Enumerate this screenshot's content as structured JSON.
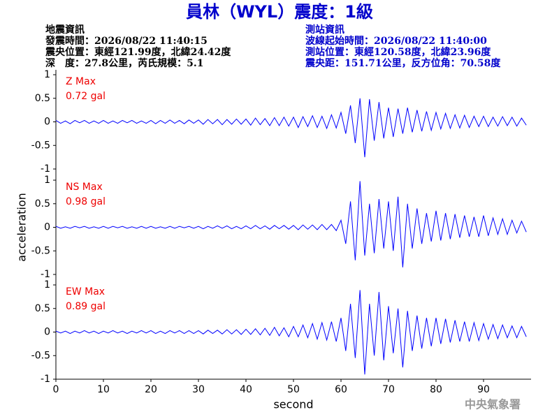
{
  "header": {
    "title": "員林（WYL）震度：1級",
    "left": [
      "地震資訊",
      "發震時間：2026/08/22 11:40:15",
      "震央位置：東經121.99度，北緯24.42度",
      "深　度：27.8公里，芮氏規模：5.1"
    ],
    "right": [
      "測站資訊",
      "波線起始時間：2026/08/22 11:40:00",
      "測站位置：東經120.58度，北緯23.96度",
      "震央距：151.71公里，反方位角：70.58度"
    ]
  },
  "footer": "中央氣象署",
  "chart_data": [
    {
      "type": "line",
      "annotation": "0.72 gal",
      "annotation_color": "#ee0000",
      "xlim": [
        0,
        100
      ],
      "ylim": [
        -1,
        1
      ],
      "yticks": [
        -1,
        -0.5,
        0,
        0.5,
        1
      ],
      "x": [
        0,
        1,
        2,
        3,
        4,
        5,
        6,
        7,
        8,
        9,
        10,
        11,
        12,
        13,
        14,
        15,
        16,
        17,
        18,
        19,
        20,
        21,
        22,
        23,
        24,
        25,
        26,
        27,
        28,
        29,
        30,
        31,
        32,
        33,
        34,
        35,
        36,
        37,
        38,
        39,
        40,
        41,
        42,
        43,
        44,
        45,
        46,
        47,
        48,
        49,
        50,
        51,
        52,
        53,
        54,
        55,
        56,
        57,
        58,
        59,
        60,
        61,
        62,
        63,
        64,
        65,
        66,
        67,
        68,
        69,
        70,
        71,
        72,
        73,
        74,
        75,
        76,
        77,
        78,
        79,
        80,
        81,
        82,
        83,
        84,
        85,
        86,
        87,
        88,
        89,
        90,
        91,
        92,
        93,
        94,
        95,
        96,
        97,
        98,
        99
      ],
      "series": [
        {
          "name": "Z Max",
          "color": "#0000ff",
          "values": [
            0.03,
            -0.03,
            0.02,
            -0.04,
            0.03,
            -0.02,
            0.03,
            -0.03,
            0.02,
            -0.03,
            0.03,
            -0.03,
            0.02,
            -0.03,
            0.03,
            -0.02,
            0.03,
            -0.03,
            0.02,
            -0.03,
            0.03,
            -0.04,
            0.03,
            -0.03,
            0.04,
            -0.03,
            0.03,
            -0.04,
            0.04,
            -0.03,
            0.04,
            -0.05,
            0.05,
            -0.04,
            0.05,
            -0.06,
            0.05,
            -0.05,
            0.06,
            -0.05,
            0.06,
            -0.07,
            0.08,
            -0.06,
            0.07,
            -0.08,
            0.09,
            -0.08,
            0.1,
            -0.09,
            0.1,
            -0.12,
            0.11,
            -0.1,
            0.13,
            -0.12,
            0.12,
            -0.14,
            0.15,
            -0.13,
            0.2,
            -0.25,
            0.35,
            -0.45,
            0.5,
            -0.75,
            0.48,
            -0.4,
            0.42,
            -0.35,
            0.3,
            -0.32,
            0.28,
            -0.25,
            0.3,
            -0.22,
            0.25,
            -0.2,
            0.22,
            -0.18,
            0.2,
            -0.15,
            0.18,
            -0.14,
            0.15,
            -0.13,
            0.14,
            -0.12,
            0.12,
            -0.1,
            0.12,
            -0.1,
            0.1,
            -0.09,
            0.11,
            -0.08,
            0.1,
            -0.09,
            0.08,
            -0.07
          ]
        }
      ]
    },
    {
      "type": "line",
      "annotation": "0.98 gal",
      "annotation_color": "#ee0000",
      "ylabel": "acceleration",
      "xlim": [
        0,
        100
      ],
      "ylim": [
        -1,
        1
      ],
      "yticks": [
        -1,
        -0.5,
        0,
        0.5,
        1
      ],
      "x": [
        0,
        1,
        2,
        3,
        4,
        5,
        6,
        7,
        8,
        9,
        10,
        11,
        12,
        13,
        14,
        15,
        16,
        17,
        18,
        19,
        20,
        21,
        22,
        23,
        24,
        25,
        26,
        27,
        28,
        29,
        30,
        31,
        32,
        33,
        34,
        35,
        36,
        37,
        38,
        39,
        40,
        41,
        42,
        43,
        44,
        45,
        46,
        47,
        48,
        49,
        50,
        51,
        52,
        53,
        54,
        55,
        56,
        57,
        58,
        59,
        60,
        61,
        62,
        63,
        64,
        65,
        66,
        67,
        68,
        69,
        70,
        71,
        72,
        73,
        74,
        75,
        76,
        77,
        78,
        79,
        80,
        81,
        82,
        83,
        84,
        85,
        86,
        87,
        88,
        89,
        90,
        91,
        92,
        93,
        94,
        95,
        96,
        97,
        98,
        99
      ],
      "series": [
        {
          "name": "NS Max",
          "color": "#0000ff",
          "values": [
            0.02,
            -0.02,
            0.01,
            -0.02,
            0.02,
            -0.01,
            0.02,
            -0.02,
            0.01,
            -0.02,
            0.02,
            -0.02,
            0.02,
            -0.01,
            0.02,
            -0.02,
            0.01,
            -0.02,
            0.02,
            -0.02,
            0.02,
            -0.02,
            0.01,
            -0.02,
            0.02,
            -0.02,
            0.02,
            -0.01,
            0.02,
            -0.02,
            0.02,
            -0.03,
            0.02,
            -0.02,
            0.03,
            -0.02,
            0.03,
            -0.03,
            0.02,
            -0.03,
            0.03,
            -0.03,
            0.04,
            -0.03,
            0.03,
            -0.04,
            0.04,
            -0.03,
            0.04,
            -0.04,
            0.04,
            -0.05,
            0.05,
            -0.04,
            0.05,
            -0.05,
            0.06,
            -0.05,
            0.06,
            -0.07,
            0.15,
            -0.35,
            0.55,
            -0.7,
            0.98,
            -0.6,
            0.5,
            -0.55,
            0.6,
            -0.45,
            0.55,
            -0.5,
            0.65,
            -0.85,
            0.5,
            -0.45,
            0.4,
            -0.35,
            0.3,
            -0.3,
            0.35,
            -0.28,
            0.3,
            -0.25,
            0.28,
            -0.22,
            0.25,
            -0.2,
            0.22,
            -0.2,
            0.25,
            -0.18,
            0.2,
            -0.15,
            0.18,
            -0.15,
            0.15,
            -0.12,
            0.13,
            -0.1
          ]
        }
      ]
    },
    {
      "type": "line",
      "annotation": "0.89 gal",
      "annotation_color": "#ee0000",
      "xlabel": "second",
      "xlim": [
        0,
        100
      ],
      "ylim": [
        -1,
        1
      ],
      "yticks": [
        -1,
        -0.5,
        0,
        0.5,
        1
      ],
      "xticks": [
        0,
        10,
        20,
        30,
        40,
        50,
        60,
        70,
        80,
        90
      ],
      "x": [
        0,
        1,
        2,
        3,
        4,
        5,
        6,
        7,
        8,
        9,
        10,
        11,
        12,
        13,
        14,
        15,
        16,
        17,
        18,
        19,
        20,
        21,
        22,
        23,
        24,
        25,
        26,
        27,
        28,
        29,
        30,
        31,
        32,
        33,
        34,
        35,
        36,
        37,
        38,
        39,
        40,
        41,
        42,
        43,
        44,
        45,
        46,
        47,
        48,
        49,
        50,
        51,
        52,
        53,
        54,
        55,
        56,
        57,
        58,
        59,
        60,
        61,
        62,
        63,
        64,
        65,
        66,
        67,
        68,
        69,
        70,
        71,
        72,
        73,
        74,
        75,
        76,
        77,
        78,
        79,
        80,
        81,
        82,
        83,
        84,
        85,
        86,
        87,
        88,
        89,
        90,
        91,
        92,
        93,
        94,
        95,
        96,
        97,
        98,
        99
      ],
      "series": [
        {
          "name": "EW Max",
          "color": "#0000ff",
          "values": [
            0.02,
            -0.02,
            0.02,
            -0.03,
            0.02,
            -0.02,
            0.03,
            -0.02,
            0.02,
            -0.03,
            0.02,
            -0.02,
            0.03,
            -0.02,
            0.02,
            -0.03,
            0.02,
            -0.02,
            0.03,
            -0.02,
            0.03,
            -0.03,
            0.02,
            -0.03,
            0.03,
            -0.02,
            0.03,
            -0.03,
            0.03,
            -0.03,
            0.03,
            -0.04,
            0.04,
            -0.03,
            0.04,
            -0.04,
            0.05,
            -0.04,
            0.05,
            -0.05,
            0.06,
            -0.05,
            0.07,
            -0.06,
            0.08,
            -0.07,
            0.1,
            -0.08,
            0.09,
            -0.1,
            0.12,
            -0.1,
            0.15,
            -0.12,
            0.18,
            -0.15,
            0.2,
            -0.17,
            0.22,
            -0.2,
            0.3,
            -0.4,
            0.6,
            -0.55,
            0.89,
            -0.9,
            0.6,
            -0.5,
            0.85,
            -0.6,
            0.55,
            -0.45,
            0.5,
            -0.75,
            0.45,
            -0.4,
            0.35,
            -0.35,
            0.3,
            -0.3,
            0.3,
            -0.25,
            0.28,
            -0.22,
            0.25,
            -0.2,
            0.22,
            -0.2,
            0.2,
            -0.18,
            0.18,
            -0.15,
            0.16,
            -0.14,
            0.15,
            -0.12,
            0.13,
            -0.12,
            0.12,
            -0.1
          ]
        }
      ]
    }
  ]
}
